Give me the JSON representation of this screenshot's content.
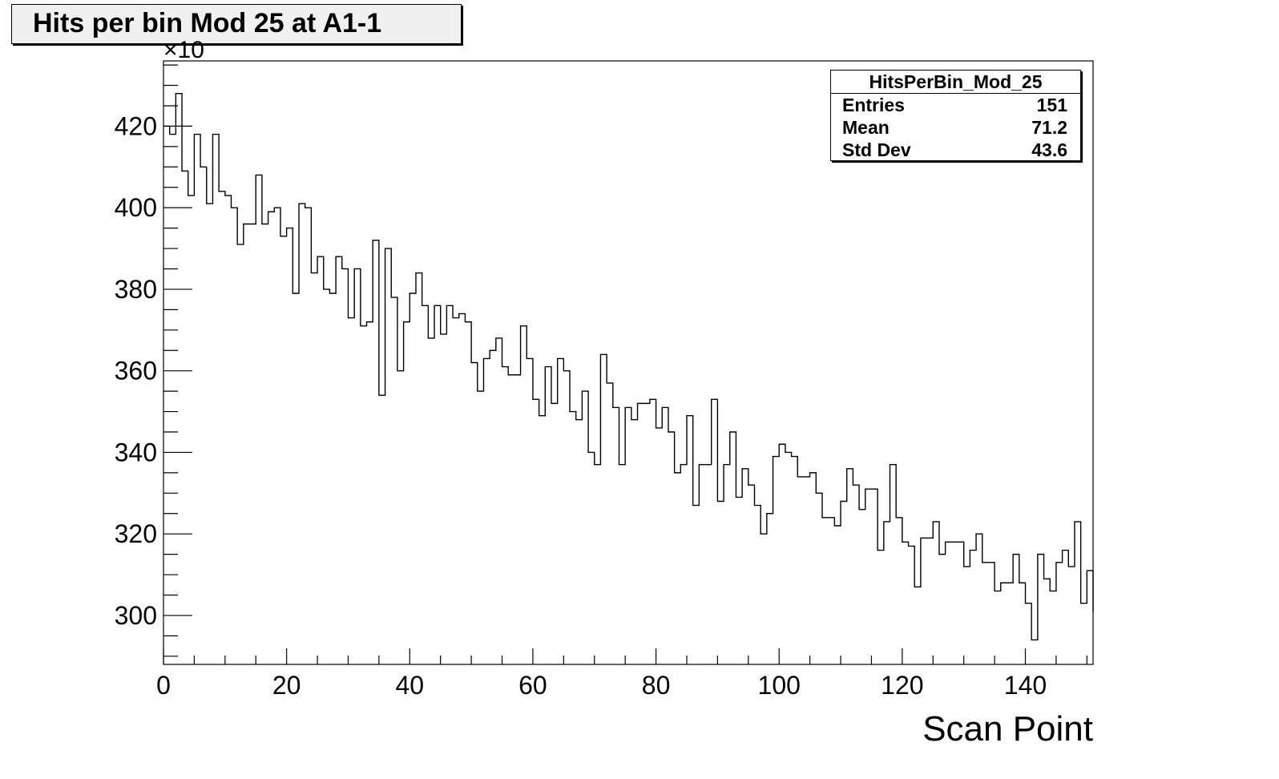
{
  "title": "Hits per bin Mod 25 at A1-1",
  "stats": {
    "name": "HitsPerBin_Mod_25",
    "rows": [
      {
        "label": "Entries",
        "value": "151"
      },
      {
        "label": "Mean",
        "value": "71.2"
      },
      {
        "label": "Std Dev",
        "value": "43.6"
      }
    ]
  },
  "chart_data": {
    "type": "step-histogram",
    "title": "Hits per bin Mod 25 at A1-1",
    "xlabel": "Scan Point",
    "ylabel": "",
    "y_multiplier_label": "×10",
    "xlim": [
      0,
      151
    ],
    "ylim": [
      288,
      436
    ],
    "x_ticks": [
      0,
      20,
      40,
      60,
      80,
      100,
      120,
      140
    ],
    "y_ticks": [
      300,
      320,
      340,
      360,
      380,
      400,
      420
    ],
    "x_bin_edges_start": 0,
    "bin_width": 1,
    "values": [
      420,
      418,
      428,
      409,
      403,
      418,
      410,
      401,
      418,
      404,
      403,
      400,
      391,
      396,
      396,
      408,
      396,
      399,
      400,
      393,
      395,
      379,
      401,
      400,
      384,
      388,
      380,
      379,
      388,
      385,
      373,
      385,
      371,
      372,
      392,
      354,
      390,
      378,
      360,
      372,
      379,
      384,
      376,
      368,
      376,
      369,
      376,
      373,
      374,
      372,
      362,
      355,
      363,
      365,
      368,
      361,
      359,
      359,
      371,
      363,
      353,
      349,
      361,
      352,
      363,
      360,
      350,
      348,
      355,
      340,
      337,
      364,
      357,
      351,
      337,
      351,
      348,
      352,
      352,
      353,
      346,
      351,
      345,
      335,
      337,
      349,
      327,
      337,
      337,
      353,
      328,
      337,
      345,
      329,
      336,
      332,
      327,
      320,
      325,
      339,
      342,
      340,
      339,
      334,
      334,
      335,
      330,
      324,
      324,
      322,
      328,
      336,
      332,
      326,
      331,
      331,
      316,
      323,
      337,
      324,
      318,
      317,
      307,
      319,
      319,
      323,
      315,
      318,
      318,
      318,
      312,
      316,
      320,
      313,
      313,
      306,
      308,
      308,
      315,
      308,
      303,
      294,
      315,
      309,
      306,
      313,
      316,
      312,
      323,
      303,
      311,
      301
    ]
  }
}
